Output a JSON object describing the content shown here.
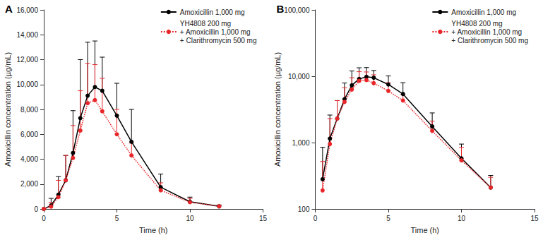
{
  "chart_data": [
    {
      "type": "line",
      "title": "A",
      "x_label": "Time (h)",
      "y_label": "Amoxicillin concentration (µg/mL)",
      "x": [
        0,
        0.5,
        1,
        1.5,
        2,
        2.5,
        3,
        3.5,
        4,
        5,
        6,
        8,
        10,
        12
      ],
      "xlim": [
        0,
        15
      ],
      "xticks": [
        0,
        5,
        10,
        15
      ],
      "ylim": [
        0,
        16000
      ],
      "yticks": [
        0,
        {
          "value": 2000,
          "label": "2,000"
        },
        {
          "value": 4000,
          "label": "4,000"
        },
        {
          "value": 6000,
          "label": "6,000"
        },
        {
          "value": 8000,
          "label": "8,000"
        },
        {
          "value": 10000,
          "label": "10,000"
        },
        {
          "value": 12000,
          "label": "12,000"
        },
        {
          "value": 14000,
          "label": "14,000"
        },
        {
          "value": 16000,
          "label": "16,000"
        }
      ],
      "grid": false,
      "legend": "upper right",
      "series": [
        {
          "name": "Amoxicillin 1,000 mg",
          "color": "#000000",
          "marker": "circle",
          "line_style": "solid",
          "values": [
            0,
            280,
            1150,
            2300,
            4500,
            7300,
            9100,
            9800,
            9500,
            7500,
            5400,
            1750,
            580,
            210
          ],
          "sd": [
            0,
            570,
            1450,
            2000,
            3400,
            4700,
            4300,
            3700,
            2700,
            2600,
            2600,
            1050,
            370,
            110
          ]
        },
        {
          "name": "YH4808 200 mg\n+ Amoxicillin 1,000 mg\n+ Clarithromycin 500 mg",
          "color": "#e8262a",
          "marker": "circle",
          "line_style": "dotted",
          "values": [
            0,
            190,
            950,
            2300,
            4100,
            6300,
            8500,
            8750,
            7850,
            6000,
            4300,
            1500,
            540,
            210
          ],
          "sd": [
            0,
            330,
            1350,
            2000,
            2600,
            3200,
            3200,
            2850,
            2650,
            2000,
            1000,
            600,
            310,
            90
          ]
        }
      ]
    },
    {
      "type": "line",
      "title": "B",
      "x_label": "Time (h)",
      "y_label": "Amoxicillin concentration (µg/mL)",
      "x": [
        0.5,
        1,
        1.5,
        2,
        2.5,
        3,
        3.5,
        4,
        5,
        6,
        8,
        10,
        12
      ],
      "xlim": [
        0,
        15
      ],
      "xticks": [
        0,
        5,
        10,
        15
      ],
      "ylim": [
        100,
        100000
      ],
      "yticks": [
        100,
        {
          "value": 1000,
          "label": "1,000"
        },
        {
          "value": 10000,
          "label": "10,000"
        },
        {
          "value": 100000,
          "label": "100,000"
        }
      ],
      "log": "y",
      "grid": false,
      "legend": "upper right",
      "series": [
        {
          "name": "Amoxicillin 1,000 mg",
          "color": "#000000",
          "marker": "circle",
          "line_style": "solid",
          "values": [
            280,
            1150,
            2300,
            4500,
            7300,
            9100,
            9800,
            9500,
            7500,
            5400,
            1750,
            580,
            210
          ],
          "sd": [
            570,
            1450,
            2000,
            3400,
            4700,
            4300,
            3700,
            2700,
            2600,
            2600,
            1050,
            370,
            110
          ]
        },
        {
          "name": "YH4808 200 mg\n+ Amoxicillin 1,000 mg\n+ Clarithromycin 500 mg",
          "color": "#e8262a",
          "marker": "circle",
          "line_style": "dotted",
          "values": [
            190,
            950,
            2300,
            4100,
            6300,
            8500,
            8750,
            7850,
            6000,
            4300,
            1500,
            540,
            210
          ],
          "sd": [
            330,
            1350,
            2000,
            2600,
            3200,
            3200,
            2850,
            2650,
            2000,
            1000,
            600,
            310,
            90
          ]
        }
      ]
    }
  ]
}
